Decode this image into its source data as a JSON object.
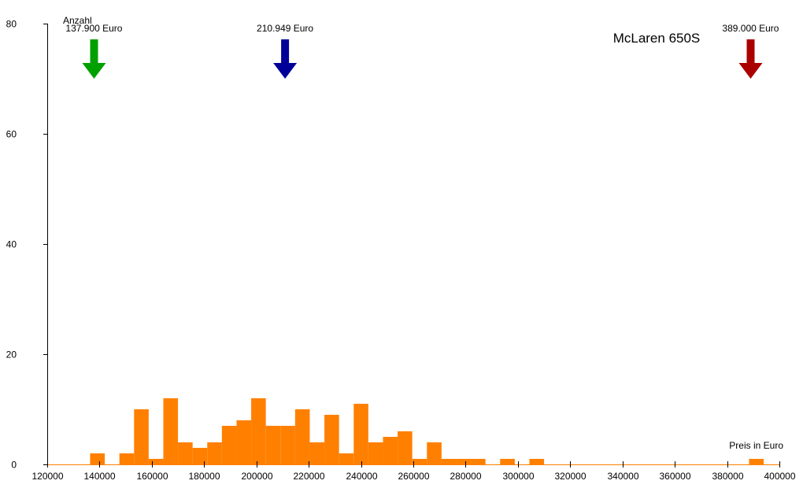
{
  "chart_data": {
    "type": "bar",
    "title": "McLaren 650S",
    "xlabel": "Preis in Euro",
    "ylabel": "Anzahl",
    "xlim": [
      120000,
      400000
    ],
    "ylim": [
      0,
      80
    ],
    "xticks": [
      120000,
      140000,
      160000,
      180000,
      200000,
      220000,
      240000,
      260000,
      280000,
      300000,
      320000,
      340000,
      360000,
      380000,
      400000
    ],
    "yticks": [
      0,
      20,
      40,
      60,
      80
    ],
    "bin_width": 5600,
    "bar_color": "#ff8000",
    "bins": [
      {
        "start": 136400,
        "count": 2
      },
      {
        "start": 147600,
        "count": 2
      },
      {
        "start": 153200,
        "count": 10
      },
      {
        "start": 158800,
        "count": 1
      },
      {
        "start": 164400,
        "count": 12
      },
      {
        "start": 170000,
        "count": 4
      },
      {
        "start": 175600,
        "count": 3
      },
      {
        "start": 181200,
        "count": 4
      },
      {
        "start": 186800,
        "count": 7
      },
      {
        "start": 192400,
        "count": 8
      },
      {
        "start": 198000,
        "count": 12
      },
      {
        "start": 203600,
        "count": 7
      },
      {
        "start": 209200,
        "count": 7
      },
      {
        "start": 214800,
        "count": 10
      },
      {
        "start": 220400,
        "count": 4
      },
      {
        "start": 226000,
        "count": 9
      },
      {
        "start": 231600,
        "count": 2
      },
      {
        "start": 237200,
        "count": 11
      },
      {
        "start": 242800,
        "count": 4
      },
      {
        "start": 248400,
        "count": 5
      },
      {
        "start": 254000,
        "count": 6
      },
      {
        "start": 259600,
        "count": 1
      },
      {
        "start": 265200,
        "count": 4
      },
      {
        "start": 270800,
        "count": 1
      },
      {
        "start": 276400,
        "count": 1
      },
      {
        "start": 282000,
        "count": 1
      },
      {
        "start": 293200,
        "count": 1
      },
      {
        "start": 304400,
        "count": 1
      },
      {
        "start": 388400,
        "count": 1
      }
    ],
    "markers": [
      {
        "name": "min",
        "value": 137900,
        "label": "137.900 Euro",
        "color": "#00a000"
      },
      {
        "name": "mean",
        "value": 210949,
        "label": "210.949 Euro",
        "color": "#000099"
      },
      {
        "name": "max",
        "value": 389000,
        "label": "389.000 Euro",
        "color": "#aa0000"
      }
    ]
  }
}
